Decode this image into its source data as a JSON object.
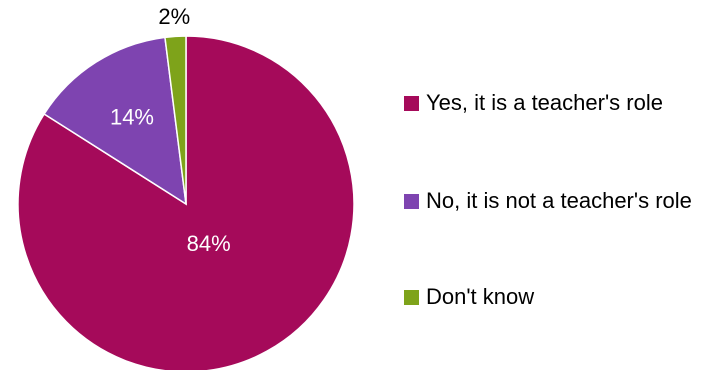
{
  "chart_data": {
    "type": "pie",
    "categories": [
      "Yes, it is a teacher's role",
      "No, it is not a teacher's role",
      "Don't know"
    ],
    "values": [
      84,
      14,
      2
    ],
    "labels": [
      "84%",
      "14%",
      "2%"
    ],
    "colors": [
      "#A50A5A",
      "#7E44B0",
      "#7EA31A"
    ],
    "label_colors": [
      "#FFFFFF",
      "#FFFFFF",
      "#000000"
    ],
    "start": "12 o'clock",
    "direction": "counter-clockwise from the first slice order: Yes drawn clockwise from top ending at 84%, then No, then Don't know",
    "legend_position": "right"
  }
}
